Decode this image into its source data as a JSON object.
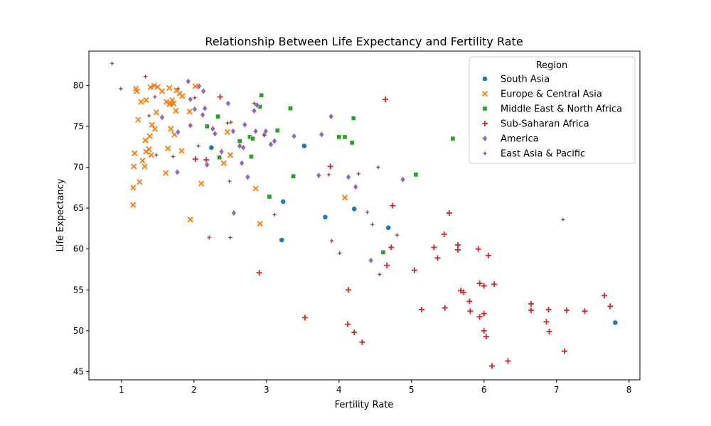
{
  "chart_data": {
    "type": "scatter",
    "title": "Relationship Between Life Expectancy and Fertility Rate",
    "xlabel": "Fertility Rate",
    "ylabel": "Life Expectancy",
    "xlim": [
      0.55,
      8.15
    ],
    "ylim": [
      44.0,
      84.2
    ],
    "xticks": [
      1,
      2,
      3,
      4,
      5,
      6,
      7,
      8
    ],
    "yticks": [
      45,
      50,
      55,
      60,
      65,
      70,
      75,
      80
    ],
    "grid": false,
    "legend": {
      "title": "Region",
      "position": "top-right"
    },
    "series": [
      {
        "name": "South Asia",
        "color": "#1f77b4",
        "marker": "circle",
        "points": [
          [
            2.24,
            72.4
          ],
          [
            3.52,
            72.6
          ],
          [
            3.23,
            65.8
          ],
          [
            3.21,
            61.1
          ],
          [
            3.81,
            63.9
          ],
          [
            4.21,
            64.9
          ],
          [
            4.68,
            62.6
          ],
          [
            7.81,
            51.0
          ]
        ]
      },
      {
        "name": "Europe & Central Asia",
        "color": "#ff7f0e",
        "marker": "x",
        "points": [
          [
            1.2,
            79.6
          ],
          [
            1.21,
            79.3
          ],
          [
            1.27,
            78.0
          ],
          [
            1.34,
            78.2
          ],
          [
            1.4,
            79.8
          ],
          [
            1.45,
            80.0
          ],
          [
            1.5,
            79.8
          ],
          [
            1.56,
            79.3
          ],
          [
            1.62,
            78.0
          ],
          [
            1.66,
            79.7
          ],
          [
            1.68,
            77.8
          ],
          [
            1.72,
            77.8
          ],
          [
            1.76,
            79.4
          ],
          [
            1.8,
            79.0
          ],
          [
            1.84,
            78.7
          ],
          [
            1.7,
            78.2
          ],
          [
            1.66,
            77.7
          ],
          [
            2.02,
            79.9
          ],
          [
            1.23,
            75.8
          ],
          [
            1.48,
            76.7
          ],
          [
            1.42,
            75.2
          ],
          [
            1.46,
            74.7
          ],
          [
            1.39,
            73.8
          ],
          [
            1.33,
            73.3
          ],
          [
            1.34,
            71.9
          ],
          [
            1.38,
            72.2
          ],
          [
            1.41,
            71.5
          ],
          [
            1.32,
            70.1
          ],
          [
            1.29,
            70.8
          ],
          [
            1.18,
            71.7
          ],
          [
            1.17,
            70.1
          ],
          [
            1.25,
            68.2
          ],
          [
            1.16,
            67.5
          ],
          [
            1.16,
            65.4
          ],
          [
            1.64,
            72.3
          ],
          [
            1.68,
            74.7
          ],
          [
            1.73,
            74.0
          ],
          [
            1.83,
            72.0
          ],
          [
            1.61,
            69.3
          ],
          [
            1.94,
            76.8
          ],
          [
            1.75,
            76.9
          ],
          [
            2.1,
            68.0
          ],
          [
            1.95,
            63.6
          ],
          [
            2.46,
            74.3
          ],
          [
            2.41,
            70.5
          ],
          [
            2.5,
            71.5
          ],
          [
            2.85,
            67.4
          ],
          [
            2.91,
            63.1
          ],
          [
            4.08,
            66.3
          ]
        ]
      },
      {
        "name": "Middle East & North Africa",
        "color": "#2ca02c",
        "marker": "square",
        "points": [
          [
            2.93,
            78.8
          ],
          [
            2.91,
            77.4
          ],
          [
            2.33,
            76.2
          ],
          [
            2.18,
            75.0
          ],
          [
            3.33,
            77.2
          ],
          [
            3.15,
            74.5
          ],
          [
            2.63,
            73.2
          ],
          [
            2.77,
            73.7
          ],
          [
            2.81,
            73.5
          ],
          [
            2.35,
            71.2
          ],
          [
            2.79,
            71.3
          ],
          [
            3.04,
            66.4
          ],
          [
            3.37,
            68.9
          ],
          [
            4.0,
            73.7
          ],
          [
            4.08,
            73.7
          ],
          [
            4.18,
            73.0
          ],
          [
            4.2,
            76.0
          ],
          [
            4.61,
            59.6
          ],
          [
            5.06,
            69.1
          ],
          [
            5.57,
            73.5
          ]
        ]
      },
      {
        "name": "Sub-Saharan Africa",
        "color": "#d62728",
        "marker": "plus",
        "points": [
          [
            2.36,
            78.6
          ],
          [
            4.64,
            78.3
          ],
          [
            2.02,
            71.0
          ],
          [
            2.17,
            70.9
          ],
          [
            3.88,
            70.1
          ],
          [
            2.9,
            57.1
          ],
          [
            3.53,
            51.6
          ],
          [
            4.74,
            65.3
          ],
          [
            5.52,
            64.4
          ],
          [
            5.45,
            61.8
          ],
          [
            5.31,
            60.2
          ],
          [
            5.64,
            60.5
          ],
          [
            5.64,
            59.9
          ],
          [
            5.92,
            60.0
          ],
          [
            6.06,
            59.2
          ],
          [
            5.36,
            58.9
          ],
          [
            4.72,
            60.2
          ],
          [
            4.66,
            58.0
          ],
          [
            5.04,
            57.4
          ],
          [
            4.13,
            55.0
          ],
          [
            5.68,
            54.9
          ],
          [
            5.72,
            54.7
          ],
          [
            5.94,
            55.8
          ],
          [
            6.0,
            55.5
          ],
          [
            6.14,
            55.7
          ],
          [
            5.8,
            53.6
          ],
          [
            5.14,
            52.6
          ],
          [
            5.46,
            52.8
          ],
          [
            5.81,
            52.4
          ],
          [
            5.94,
            51.7
          ],
          [
            6.0,
            52.1
          ],
          [
            6.0,
            50.0
          ],
          [
            6.03,
            49.3
          ],
          [
            4.12,
            50.8
          ],
          [
            4.21,
            49.8
          ],
          [
            4.32,
            48.6
          ],
          [
            6.65,
            53.3
          ],
          [
            6.65,
            52.5
          ],
          [
            6.89,
            52.6
          ],
          [
            6.86,
            51.1
          ],
          [
            6.9,
            49.9
          ],
          [
            7.14,
            52.5
          ],
          [
            7.39,
            52.4
          ],
          [
            7.66,
            54.3
          ],
          [
            7.74,
            53.0
          ],
          [
            7.11,
            47.5
          ],
          [
            6.33,
            46.3
          ],
          [
            6.11,
            45.7
          ]
        ]
      },
      {
        "name": "America",
        "color": "#9467bd",
        "marker": "diamond",
        "points": [
          [
            1.92,
            80.5
          ],
          [
            2.07,
            79.9
          ],
          [
            2.13,
            79.3
          ],
          [
            1.95,
            78.3
          ],
          [
            1.56,
            76.1
          ],
          [
            1.95,
            75.1
          ],
          [
            2.01,
            77.1
          ],
          [
            2.15,
            77.2
          ],
          [
            2.12,
            76.4
          ],
          [
            1.78,
            74.3
          ],
          [
            2.26,
            74.7
          ],
          [
            2.29,
            74.1
          ],
          [
            2.47,
            77.8
          ],
          [
            2.54,
            74.4
          ],
          [
            2.7,
            75.2
          ],
          [
            2.85,
            74.4
          ],
          [
            2.97,
            74.0
          ],
          [
            2.99,
            74.4
          ],
          [
            2.83,
            76.9
          ],
          [
            2.87,
            77.6
          ],
          [
            3.06,
            72.8
          ],
          [
            3.11,
            73.2
          ],
          [
            2.63,
            72.6
          ],
          [
            2.68,
            72.4
          ],
          [
            2.38,
            71.9
          ],
          [
            2.18,
            70.3
          ],
          [
            2.66,
            70.5
          ],
          [
            2.74,
            68.8
          ],
          [
            1.77,
            69.4
          ],
          [
            2.55,
            64.4
          ],
          [
            3.38,
            73.8
          ],
          [
            3.76,
            74.0
          ],
          [
            3.89,
            76.2
          ],
          [
            3.72,
            69.0
          ],
          [
            4.13,
            68.8
          ],
          [
            4.23,
            67.6
          ],
          [
            4.88,
            68.5
          ],
          [
            4.44,
            58.6
          ]
        ]
      },
      {
        "name": "East Asia & Pacific",
        "color": "#8c564b",
        "marker": "star",
        "points": [
          [
            0.87,
            82.7
          ],
          [
            0.99,
            79.6
          ],
          [
            1.33,
            81.1
          ],
          [
            1.46,
            78.6
          ],
          [
            1.38,
            76.3
          ],
          [
            1.71,
            71.3
          ],
          [
            1.48,
            71.5
          ],
          [
            1.78,
            79.6
          ],
          [
            2.01,
            78.5
          ],
          [
            2.06,
            72.6
          ],
          [
            2.46,
            75.4
          ],
          [
            2.51,
            75.5
          ],
          [
            2.83,
            77.8
          ],
          [
            2.97,
            73.9
          ],
          [
            2.21,
            61.4
          ],
          [
            2.5,
            61.4
          ],
          [
            2.49,
            68.3
          ],
          [
            3.11,
            64.2
          ],
          [
            3.86,
            69.1
          ],
          [
            3.9,
            61.0
          ],
          [
            4.01,
            59.5
          ],
          [
            4.27,
            69.2
          ],
          [
            4.39,
            64.5
          ],
          [
            4.46,
            63.0
          ],
          [
            4.54,
            70.0
          ],
          [
            4.56,
            56.9
          ],
          [
            4.8,
            61.7
          ],
          [
            7.09,
            63.6
          ]
        ]
      }
    ]
  }
}
